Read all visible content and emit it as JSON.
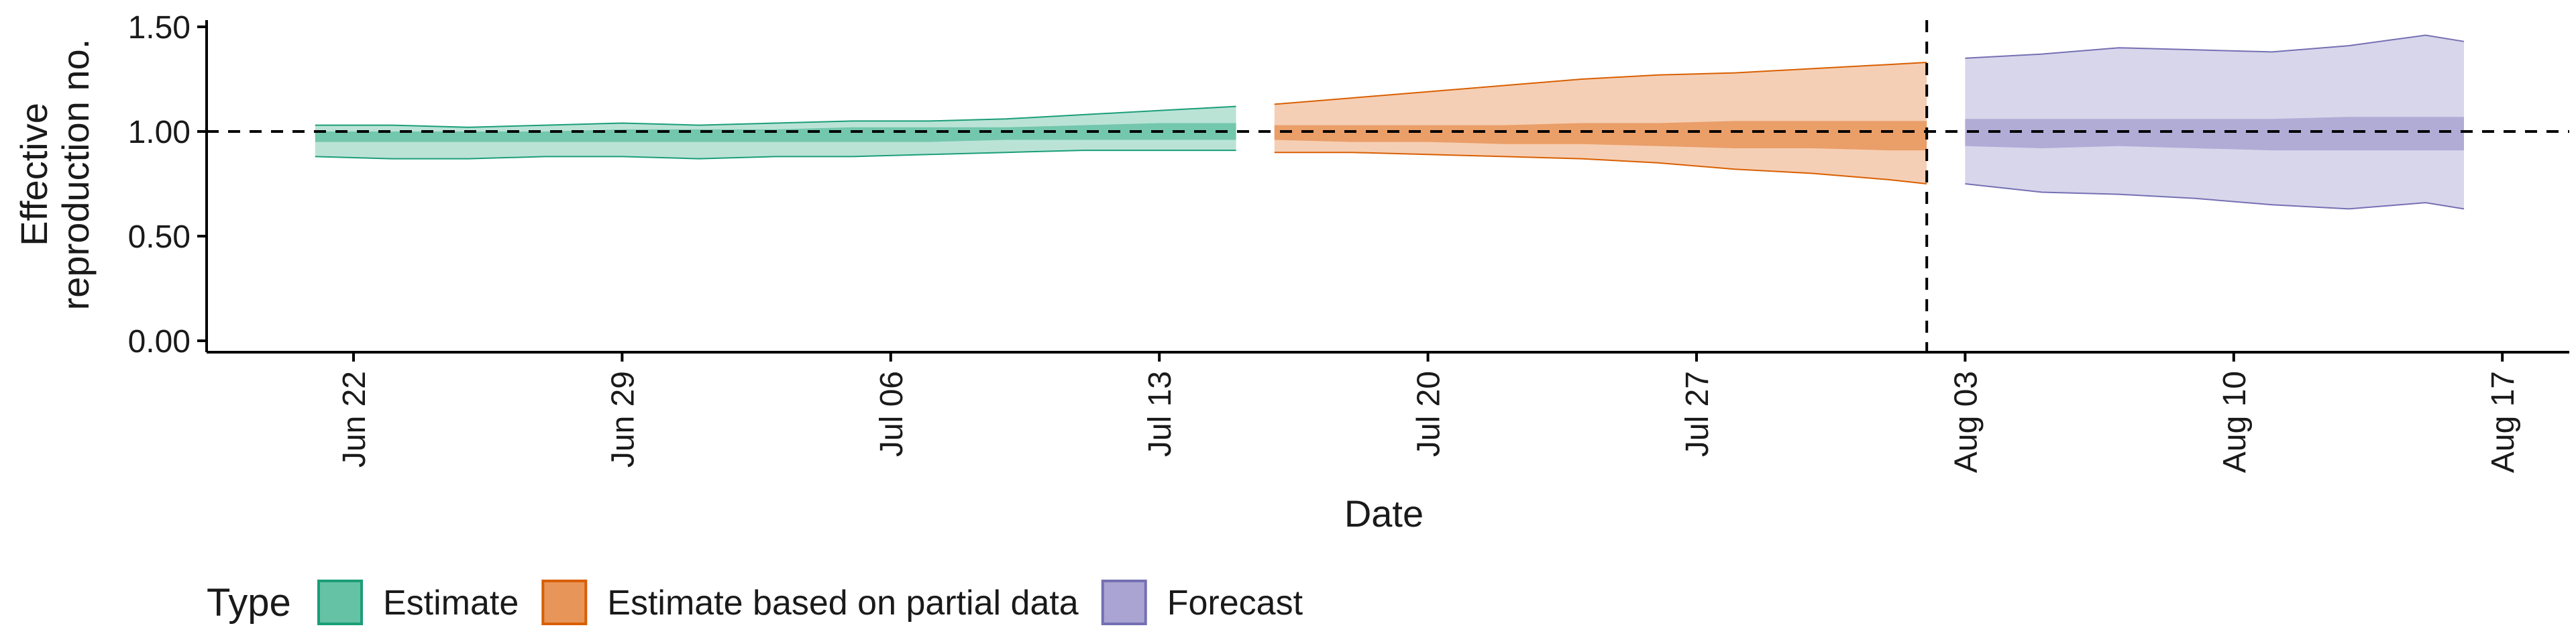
{
  "chart_data": {
    "type": "area",
    "xlabel": "Date",
    "ylabel": [
      "Effective",
      "reproduction no."
    ],
    "ylim": [
      0,
      1.5
    ],
    "y_ticks": [
      "0.00",
      "0.50",
      "1.00",
      "1.50"
    ],
    "x_ticks": [
      {
        "date": "2021-06-22",
        "label": "Jun 22"
      },
      {
        "date": "2021-06-29",
        "label": "Jun 29"
      },
      {
        "date": "2021-07-06",
        "label": "Jul 06"
      },
      {
        "date": "2021-07-13",
        "label": "Jul 13"
      },
      {
        "date": "2021-07-20",
        "label": "Jul 20"
      },
      {
        "date": "2021-07-27",
        "label": "Jul 27"
      },
      {
        "date": "2021-08-03",
        "label": "Aug 03"
      },
      {
        "date": "2021-08-10",
        "label": "Aug 10"
      },
      {
        "date": "2021-08-17",
        "label": "Aug 17"
      }
    ],
    "reference_line_y": 1.0,
    "vertical_reference_date": "2021-08-02",
    "grid": false,
    "legend": {
      "title": "Type",
      "placement": "bottom-left",
      "entries": [
        {
          "label": "Estimate",
          "fill": "#66C2A5",
          "stroke": "#1B9E77"
        },
        {
          "label": "Estimate based on partial data",
          "fill": "#E8955A",
          "stroke": "#D95F02"
        },
        {
          "label": "Forecast",
          "fill": "#A9A4D2",
          "stroke": "#7570B3"
        }
      ]
    },
    "series": [
      {
        "name": "Estimate",
        "fill": "#66C2A5",
        "stroke": "#1B9E77",
        "x": [
          "2021-06-21",
          "2021-06-23",
          "2021-06-25",
          "2021-06-27",
          "2021-06-29",
          "2021-07-01",
          "2021-07-03",
          "2021-07-05",
          "2021-07-07",
          "2021-07-09",
          "2021-07-11",
          "2021-07-13",
          "2021-07-15"
        ],
        "lower90": [
          0.88,
          0.87,
          0.87,
          0.88,
          0.88,
          0.87,
          0.88,
          0.88,
          0.89,
          0.9,
          0.91,
          0.91,
          0.91
        ],
        "upper90": [
          1.03,
          1.03,
          1.02,
          1.03,
          1.04,
          1.03,
          1.04,
          1.05,
          1.05,
          1.06,
          1.08,
          1.1,
          1.12
        ],
        "lower50": [
          0.95,
          0.95,
          0.95,
          0.95,
          0.95,
          0.95,
          0.95,
          0.95,
          0.95,
          0.96,
          0.96,
          0.96,
          0.96
        ],
        "upper50": [
          1.0,
          1.0,
          1.0,
          1.0,
          1.01,
          1.01,
          1.01,
          1.02,
          1.02,
          1.02,
          1.03,
          1.04,
          1.04
        ]
      },
      {
        "name": "Estimate based on partial data",
        "fill": "#E8955A",
        "stroke": "#D95F02",
        "x": [
          "2021-07-16",
          "2021-07-18",
          "2021-07-20",
          "2021-07-22",
          "2021-07-24",
          "2021-07-26",
          "2021-07-28",
          "2021-07-30",
          "2021-08-01",
          "2021-08-02"
        ],
        "lower90": [
          0.9,
          0.9,
          0.89,
          0.88,
          0.87,
          0.85,
          0.82,
          0.8,
          0.77,
          0.75
        ],
        "upper90": [
          1.13,
          1.16,
          1.19,
          1.22,
          1.25,
          1.27,
          1.28,
          1.3,
          1.32,
          1.33
        ],
        "lower50": [
          0.96,
          0.95,
          0.95,
          0.94,
          0.94,
          0.93,
          0.92,
          0.92,
          0.91,
          0.91
        ],
        "upper50": [
          1.03,
          1.03,
          1.03,
          1.03,
          1.04,
          1.04,
          1.05,
          1.05,
          1.05,
          1.05
        ]
      },
      {
        "name": "Forecast",
        "fill": "#A9A4D2",
        "stroke": "#7570B3",
        "x": [
          "2021-08-03",
          "2021-08-05",
          "2021-08-07",
          "2021-08-09",
          "2021-08-11",
          "2021-08-13",
          "2021-08-15",
          "2021-08-16"
        ],
        "lower90": [
          0.75,
          0.71,
          0.7,
          0.68,
          0.65,
          0.63,
          0.66,
          0.63
        ],
        "upper90": [
          1.35,
          1.37,
          1.4,
          1.39,
          1.38,
          1.41,
          1.46,
          1.43
        ],
        "lower50": [
          0.93,
          0.92,
          0.93,
          0.92,
          0.91,
          0.91,
          0.91,
          0.91
        ],
        "upper50": [
          1.06,
          1.06,
          1.06,
          1.06,
          1.06,
          1.07,
          1.07,
          1.07
        ]
      }
    ]
  }
}
